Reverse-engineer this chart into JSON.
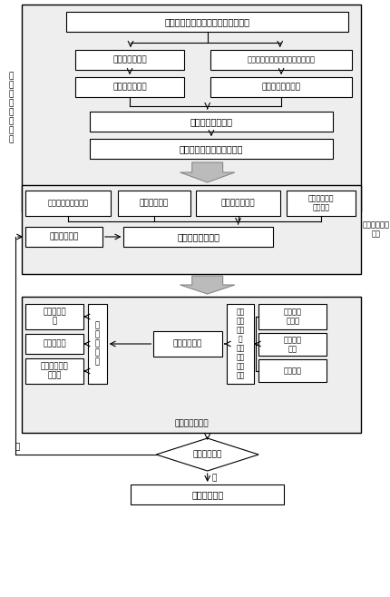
{
  "fig_width": 4.31,
  "fig_height": 6.58,
  "bg_color": "#ffffff",
  "sect_bg": "#eeeeee",
  "box_bg": "#ffffff",
  "box_edge": "#000000",
  "arrow_gray_fill": "#bbbbbb",
  "arrow_gray_edge": "#888888",
  "box1_text": "树种不同生长阶段形态特征参数获取",
  "box2L_text": "叶片形状、大小",
  "box2R_text": "树木枝干系统拓扑结构和几何信息",
  "box3L_text": "叶精细三维模型",
  "box3R_text": "枝干系统三维模型",
  "box4_text": "树木精细三维模型",
  "box5_text": "树木不同生长阶段三维模型",
  "label1_text": "树\n木\n精\n细\n三\n维\n建\n模",
  "boxA1_text": "造林区数字高程模型",
  "boxA2_text": "造林初始密度",
  "boxA3_text": "树种种植点配置",
  "boxA4_text": "行距、株距、\n行向配置",
  "boxB1_text": "造林密度调整",
  "boxB2_text": "三维林分场景绘制",
  "label2_text": "林分三维场景\n构建",
  "boxC1_text": "各时刻透光\n率",
  "boxC2_text": "日均透光率",
  "boxC3_text": "不同生长阶段\n透光率",
  "boxC4_text": "透\n光\n性\n计\n算",
  "boxC5_text": "光线跟踪算法",
  "boxC6_text": "各时\n刻太\n阳高\n度\n角、\n方位\n角、\n光强",
  "boxC7_text": "造林区地\n理位置",
  "boxC8_text": "一天中各\n时刻",
  "boxC9_text": "天气晴朗",
  "label3_text": "林分透光率分析",
  "diamond_text": "透光率科学性",
  "final_box_text": "输出造林密度",
  "yes_text": "是",
  "no_text": "否"
}
